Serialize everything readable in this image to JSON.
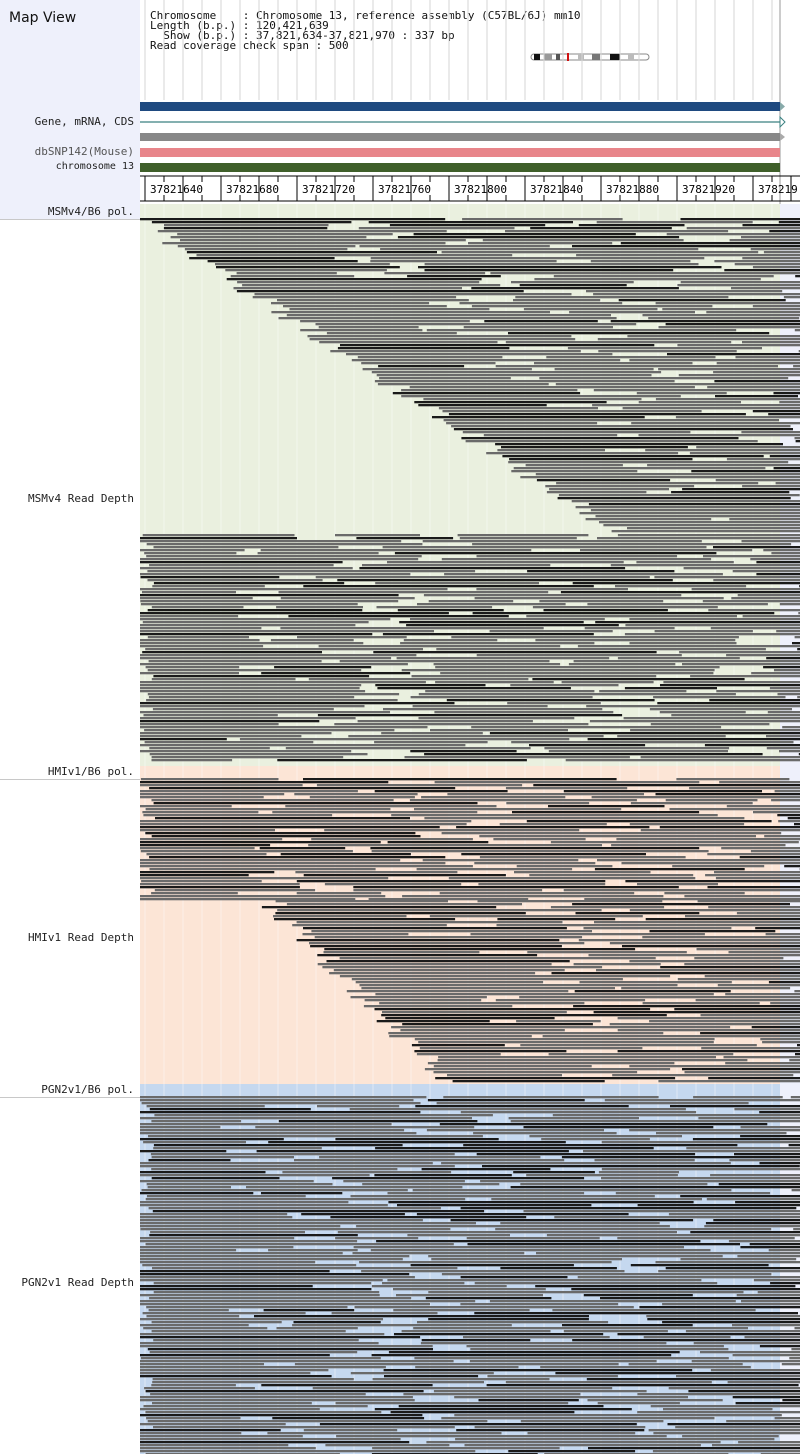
{
  "map_view": {
    "title": "Map View",
    "info_line1": "Chromosome    : Chromosome 13, reference assembly (C57BL/6J) mm10",
    "info_line2": "Length (b.p.) : 120,421,639",
    "info_line3": "  Show (b.p.) : 37,821,634-37,821,970 : 337 bp",
    "info_line4": "Read coverage check span : 500"
  },
  "tracks": {
    "gene_label": "Gene, mRNA, CDS",
    "snp_label": "dbSNP142(Mouse)",
    "chrom_label": "chromosome 13",
    "msm_pol": "MSMv4/B6 pol.",
    "msm_depth": "MSMv4 Read Depth",
    "hmi_pol": "HMIv1/B6 pol.",
    "hmi_depth": "HMIv1 Read Depth",
    "pgn_pol": "PGN2v1/B6 pol.",
    "pgn_depth": "PGN2v1 Read Depth"
  },
  "ruler": {
    "ticks": [
      "37821640",
      "37821680",
      "37821720",
      "37821760",
      "37821800",
      "37821840",
      "37821880",
      "37821920",
      "378219"
    ]
  },
  "colors": {
    "gene_bar": "#1f4a80",
    "snp_bar": "#e8858a",
    "chrom_bar": "#3f5f2a",
    "msm_bg": "#eaf0df",
    "hmi_bg": "#fce5d6",
    "pgn_bg": "#c5d8ef",
    "read_gray": "#666666",
    "read_dark": "#1a1a1a"
  }
}
